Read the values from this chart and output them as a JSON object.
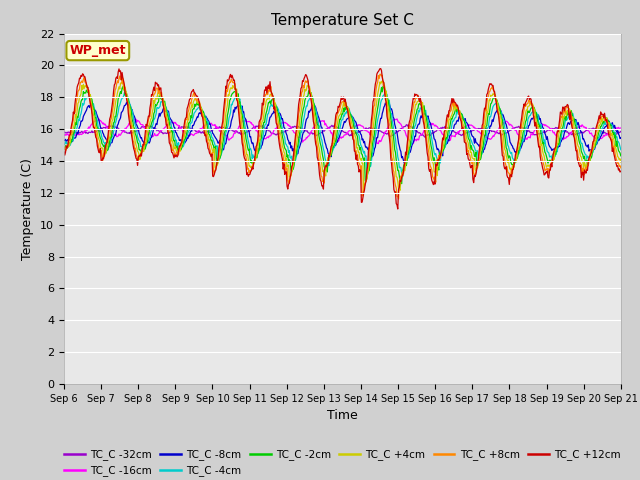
{
  "title": "Temperature Set C",
  "xlabel": "Time",
  "ylabel": "Temperature (C)",
  "ylim": [
    0,
    22
  ],
  "yticks": [
    0,
    2,
    4,
    6,
    8,
    10,
    12,
    14,
    16,
    18,
    20,
    22
  ],
  "date_labels": [
    "Sep 6",
    "Sep 7",
    "Sep 8",
    "Sep 9",
    "Sep 10",
    "Sep 11",
    "Sep 12",
    "Sep 13",
    "Sep 14",
    "Sep 15",
    "Sep 16",
    "Sep 17",
    "Sep 18",
    "Sep 19",
    "Sep 20",
    "Sep 21"
  ],
  "legend_entries": [
    {
      "label": "TC_C -32cm",
      "color": "#9900cc"
    },
    {
      "label": "TC_C -16cm",
      "color": "#ff00ff"
    },
    {
      "label": "TC_C -8cm",
      "color": "#0000cc"
    },
    {
      "label": "TC_C -4cm",
      "color": "#00cccc"
    },
    {
      "label": "TC_C -2cm",
      "color": "#00cc00"
    },
    {
      "label": "TC_C +4cm",
      "color": "#cccc00"
    },
    {
      "label": "TC_C +8cm",
      "color": "#ff8800"
    },
    {
      "label": "TC_C +12cm",
      "color": "#cc0000"
    }
  ],
  "annotation_text": "WP_met",
  "annotation_color": "#cc0000",
  "annotation_bg": "#ffffcc",
  "annotation_edge": "#999900",
  "fig_bg": "#d0d0d0",
  "plot_bg": "#e8e8e8",
  "grid_color": "#ffffff",
  "title_fontsize": 11,
  "axis_label_fontsize": 9,
  "tick_fontsize": 8,
  "legend_fontsize": 8
}
